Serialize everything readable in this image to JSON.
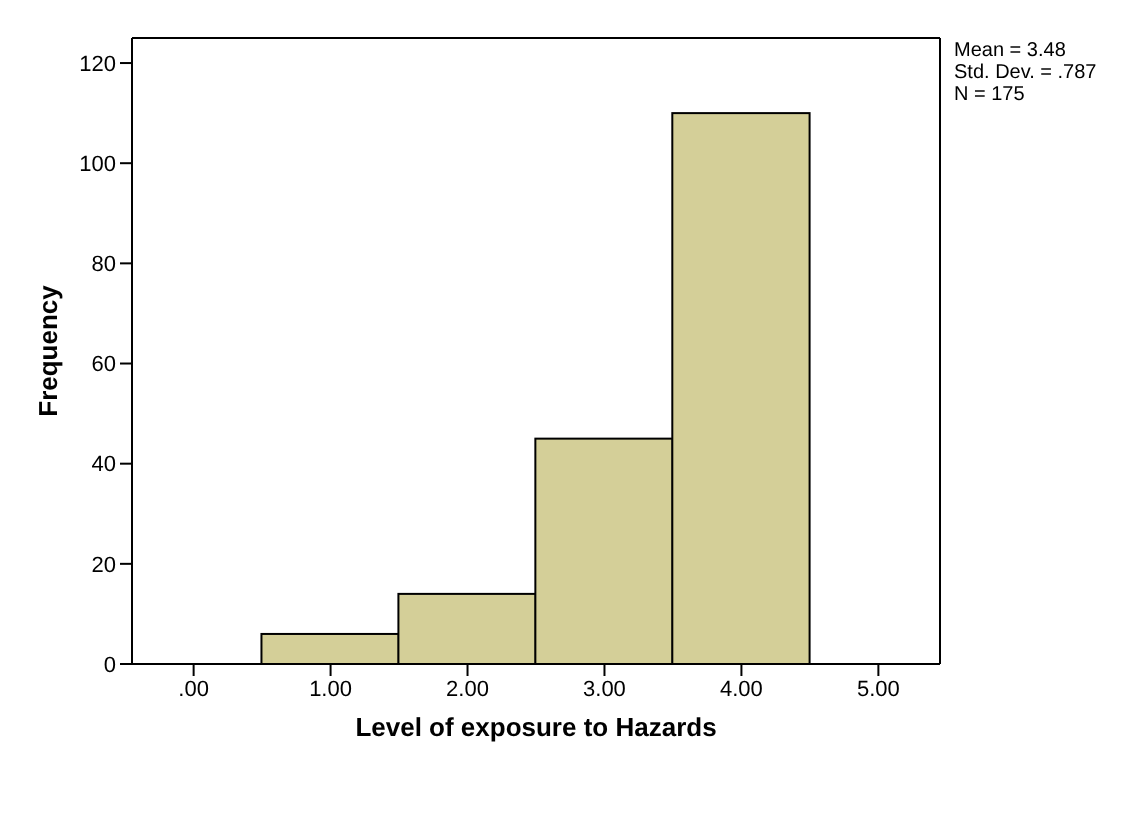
{
  "chart_data": {
    "type": "histogram",
    "xlabel": "Level of exposure to Hazards",
    "ylabel": "Frequency",
    "bins": [
      0.5,
      1.5,
      2.5,
      3.5,
      4.5
    ],
    "values": [
      6,
      14,
      45,
      110
    ],
    "color": "#d4cf98",
    "xlim": [
      -0.45,
      5.45
    ],
    "xticks": [
      {
        "value": 0,
        "label": ".00"
      },
      {
        "value": 1,
        "label": "1.00"
      },
      {
        "value": 2,
        "label": "2.00"
      },
      {
        "value": 3,
        "label": "3.00"
      },
      {
        "value": 4,
        "label": "4.00"
      },
      {
        "value": 5,
        "label": "5.00"
      }
    ],
    "ylim": [
      0,
      125
    ],
    "yticks": [
      0,
      20,
      40,
      60,
      80,
      100,
      120
    ],
    "annotations": [
      "Mean = 3.48",
      "Std. Dev. = .787",
      "N = 175"
    ]
  }
}
